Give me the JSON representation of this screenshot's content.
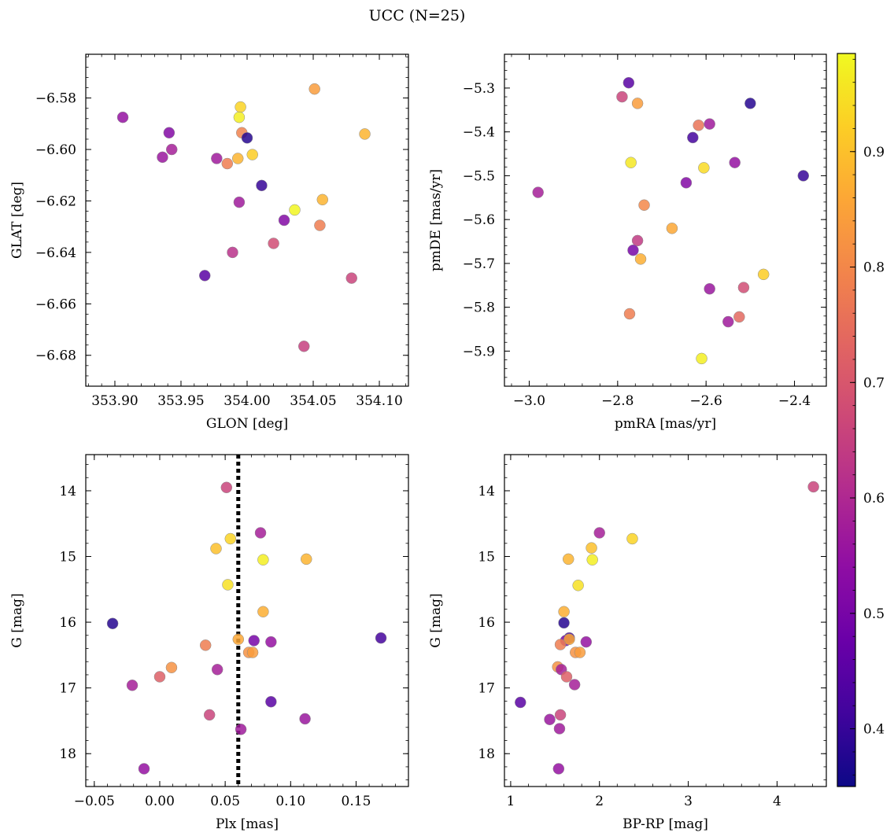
{
  "figure": {
    "title": "UCC (N=25)",
    "colorbar": {
      "ticks": [
        "0.4",
        "0.5",
        "0.6",
        "0.7",
        "0.8",
        "0.9"
      ],
      "min": 0.35,
      "max": 0.985,
      "colormap": "plasma"
    }
  },
  "chart_data": [
    {
      "type": "scatter",
      "title": "",
      "xlabel": "GLON [deg]",
      "ylabel": "GLAT [deg]",
      "xlim": [
        353.878,
        354.122
      ],
      "ylim": [
        -6.692,
        -6.563
      ],
      "xticks": [
        "353.90",
        "353.95",
        "354.00",
        "354.05",
        "354.10"
      ],
      "xtick_values": [
        353.9,
        353.95,
        354.0,
        354.05,
        354.1
      ],
      "yticks": [
        "-6.58",
        "-6.60",
        "-6.62",
        "-6.64",
        "-6.66",
        "-6.68"
      ],
      "ytick_values": [
        -6.58,
        -6.6,
        -6.62,
        -6.64,
        -6.66,
        -6.68
      ],
      "invert_y": false,
      "points": [
        {
          "x": 353.906,
          "y": -6.5875,
          "c": 0.55
        },
        {
          "x": 353.941,
          "y": -6.5935,
          "c": 0.52
        },
        {
          "x": 353.943,
          "y": -6.6,
          "c": 0.58
        },
        {
          "x": 353.936,
          "y": -6.603,
          "c": 0.56
        },
        {
          "x": 353.977,
          "y": -6.6035,
          "c": 0.57
        },
        {
          "x": 353.985,
          "y": -6.6055,
          "c": 0.78
        },
        {
          "x": 353.993,
          "y": -6.6035,
          "c": 0.88
        },
        {
          "x": 353.995,
          "y": -6.5835,
          "c": 0.93
        },
        {
          "x": 353.994,
          "y": -6.5875,
          "c": 0.97
        },
        {
          "x": 353.996,
          "y": -6.5935,
          "c": 0.79
        },
        {
          "x": 354.0,
          "y": -6.5955,
          "c": 0.38
        },
        {
          "x": 354.004,
          "y": -6.602,
          "c": 0.92
        },
        {
          "x": 354.051,
          "y": -6.5765,
          "c": 0.84
        },
        {
          "x": 354.089,
          "y": -6.594,
          "c": 0.88
        },
        {
          "x": 354.011,
          "y": -6.614,
          "c": 0.4
        },
        {
          "x": 353.994,
          "y": -6.6205,
          "c": 0.57
        },
        {
          "x": 354.057,
          "y": -6.6195,
          "c": 0.88
        },
        {
          "x": 354.036,
          "y": -6.6235,
          "c": 0.98
        },
        {
          "x": 354.028,
          "y": -6.6275,
          "c": 0.52
        },
        {
          "x": 354.055,
          "y": -6.6295,
          "c": 0.78
        },
        {
          "x": 354.02,
          "y": -6.6365,
          "c": 0.68
        },
        {
          "x": 353.989,
          "y": -6.64,
          "c": 0.62
        },
        {
          "x": 353.968,
          "y": -6.649,
          "c": 0.45
        },
        {
          "x": 354.079,
          "y": -6.65,
          "c": 0.66
        },
        {
          "x": 354.043,
          "y": -6.6765,
          "c": 0.65
        }
      ]
    },
    {
      "type": "scatter",
      "title": "",
      "xlabel": "pmRA [mas/yr]",
      "ylabel": "pmDE [mas/yr]",
      "xlim": [
        -3.056,
        -2.328
      ],
      "ylim": [
        -5.98,
        -5.223
      ],
      "xticks": [
        "-3.0",
        "-2.8",
        "-2.6",
        "-2.4"
      ],
      "xtick_values": [
        -3.0,
        -2.8,
        -2.6,
        -2.4
      ],
      "yticks": [
        "-5.3",
        "-5.4",
        "-5.5",
        "-5.6",
        "-5.7",
        "-5.8",
        "-5.9"
      ],
      "ytick_values": [
        -5.3,
        -5.4,
        -5.5,
        -5.6,
        -5.7,
        -5.8,
        -5.9
      ],
      "invert_y": false,
      "points": [
        {
          "x": -2.775,
          "y": -5.288,
          "c": 0.45
        },
        {
          "x": -2.79,
          "y": -5.32,
          "c": 0.66
        },
        {
          "x": -2.755,
          "y": -5.335,
          "c": 0.84
        },
        {
          "x": -2.5,
          "y": -5.335,
          "c": 0.38
        },
        {
          "x": -2.617,
          "y": -5.385,
          "c": 0.76
        },
        {
          "x": -2.592,
          "y": -5.382,
          "c": 0.57
        },
        {
          "x": -2.63,
          "y": -5.413,
          "c": 0.42
        },
        {
          "x": -2.77,
          "y": -5.47,
          "c": 0.96
        },
        {
          "x": -2.605,
          "y": -5.482,
          "c": 0.94
        },
        {
          "x": -2.535,
          "y": -5.47,
          "c": 0.55
        },
        {
          "x": -2.38,
          "y": -5.5,
          "c": 0.4
        },
        {
          "x": -2.645,
          "y": -5.516,
          "c": 0.52
        },
        {
          "x": -2.98,
          "y": -5.538,
          "c": 0.58
        },
        {
          "x": -2.74,
          "y": -5.567,
          "c": 0.8
        },
        {
          "x": -2.677,
          "y": -5.62,
          "c": 0.86
        },
        {
          "x": -2.755,
          "y": -5.648,
          "c": 0.64
        },
        {
          "x": -2.765,
          "y": -5.67,
          "c": 0.5
        },
        {
          "x": -2.748,
          "y": -5.69,
          "c": 0.87
        },
        {
          "x": -2.47,
          "y": -5.725,
          "c": 0.92
        },
        {
          "x": -2.592,
          "y": -5.758,
          "c": 0.56
        },
        {
          "x": -2.515,
          "y": -5.755,
          "c": 0.68
        },
        {
          "x": -2.773,
          "y": -5.815,
          "c": 0.78
        },
        {
          "x": -2.525,
          "y": -5.822,
          "c": 0.74
        },
        {
          "x": -2.55,
          "y": -5.833,
          "c": 0.57
        },
        {
          "x": -2.61,
          "y": -5.917,
          "c": 0.97
        }
      ]
    },
    {
      "type": "scatter",
      "title": "",
      "xlabel": "Plx [mas]",
      "ylabel": "G [mag]",
      "xlim": [
        -0.0565,
        0.19
      ],
      "ylim": [
        18.5,
        13.45
      ],
      "xticks": [
        "-0.05",
        "0.00",
        "0.05",
        "0.10",
        "0.15"
      ],
      "xtick_values": [
        -0.05,
        0.0,
        0.05,
        0.1,
        0.15
      ],
      "yticks": [
        "14",
        "15",
        "16",
        "17",
        "18"
      ],
      "ytick_values": [
        14,
        15,
        16,
        17,
        18
      ],
      "invert_y": true,
      "vline": {
        "x": 0.06,
        "style": "dotted",
        "color": "#000000"
      },
      "points": [
        {
          "x": 0.051,
          "y": 13.95,
          "c": 0.66
        },
        {
          "x": 0.077,
          "y": 14.64,
          "c": 0.58
        },
        {
          "x": 0.054,
          "y": 14.73,
          "c": 0.93
        },
        {
          "x": 0.043,
          "y": 14.88,
          "c": 0.9
        },
        {
          "x": 0.079,
          "y": 15.05,
          "c": 0.97
        },
        {
          "x": 0.112,
          "y": 15.04,
          "c": 0.88
        },
        {
          "x": 0.052,
          "y": 15.43,
          "c": 0.95
        },
        {
          "x": 0.079,
          "y": 15.84,
          "c": 0.87
        },
        {
          "x": -0.036,
          "y": 16.02,
          "c": 0.38
        },
        {
          "x": 0.169,
          "y": 16.24,
          "c": 0.42
        },
        {
          "x": 0.06,
          "y": 16.26,
          "c": 0.86
        },
        {
          "x": 0.072,
          "y": 16.28,
          "c": 0.5
        },
        {
          "x": 0.085,
          "y": 16.3,
          "c": 0.55
        },
        {
          "x": 0.035,
          "y": 16.35,
          "c": 0.78
        },
        {
          "x": 0.068,
          "y": 16.46,
          "c": 0.82
        },
        {
          "x": 0.071,
          "y": 16.46,
          "c": 0.84
        },
        {
          "x": 0.009,
          "y": 16.69,
          "c": 0.82
        },
        {
          "x": 0.044,
          "y": 16.72,
          "c": 0.58
        },
        {
          "x": 0.0,
          "y": 16.83,
          "c": 0.72
        },
        {
          "x": -0.021,
          "y": 16.96,
          "c": 0.58
        },
        {
          "x": 0.085,
          "y": 17.21,
          "c": 0.45
        },
        {
          "x": 0.038,
          "y": 17.41,
          "c": 0.66
        },
        {
          "x": 0.111,
          "y": 17.47,
          "c": 0.56
        },
        {
          "x": 0.062,
          "y": 17.63,
          "c": 0.57
        },
        {
          "x": -0.012,
          "y": 18.23,
          "c": 0.55
        }
      ]
    },
    {
      "type": "scatter",
      "title": "",
      "xlabel": "BP-RP [mag]",
      "ylabel": "G [mag]",
      "xlim": [
        0.93,
        4.555
      ],
      "ylim": [
        18.5,
        13.45
      ],
      "xticks": [
        "1",
        "2",
        "3",
        "4"
      ],
      "xtick_values": [
        1,
        2,
        3,
        4
      ],
      "yticks": [
        "14",
        "15",
        "16",
        "17",
        "18"
      ],
      "ytick_values": [
        14,
        15,
        16,
        17,
        18
      ],
      "invert_y": true,
      "points": [
        {
          "x": 4.41,
          "y": 13.94,
          "c": 0.66
        },
        {
          "x": 2.0,
          "y": 14.64,
          "c": 0.58
        },
        {
          "x": 2.37,
          "y": 14.73,
          "c": 0.93
        },
        {
          "x": 1.91,
          "y": 14.87,
          "c": 0.9
        },
        {
          "x": 1.92,
          "y": 15.05,
          "c": 0.97
        },
        {
          "x": 1.65,
          "y": 15.04,
          "c": 0.88
        },
        {
          "x": 1.76,
          "y": 15.44,
          "c": 0.95
        },
        {
          "x": 1.6,
          "y": 15.84,
          "c": 0.87
        },
        {
          "x": 1.6,
          "y": 16.01,
          "c": 0.38
        },
        {
          "x": 1.66,
          "y": 16.24,
          "c": 0.42
        },
        {
          "x": 1.62,
          "y": 16.28,
          "c": 0.5
        },
        {
          "x": 1.66,
          "y": 16.26,
          "c": 0.86
        },
        {
          "x": 1.85,
          "y": 16.3,
          "c": 0.55
        },
        {
          "x": 1.56,
          "y": 16.34,
          "c": 0.78
        },
        {
          "x": 1.73,
          "y": 16.46,
          "c": 0.82
        },
        {
          "x": 1.78,
          "y": 16.46,
          "c": 0.84
        },
        {
          "x": 1.53,
          "y": 16.68,
          "c": 0.82
        },
        {
          "x": 1.57,
          "y": 16.72,
          "c": 0.58
        },
        {
          "x": 1.63,
          "y": 16.83,
          "c": 0.72
        },
        {
          "x": 1.72,
          "y": 16.95,
          "c": 0.58
        },
        {
          "x": 1.11,
          "y": 17.22,
          "c": 0.45
        },
        {
          "x": 1.56,
          "y": 17.41,
          "c": 0.66
        },
        {
          "x": 1.44,
          "y": 17.48,
          "c": 0.56
        },
        {
          "x": 1.55,
          "y": 17.62,
          "c": 0.57
        },
        {
          "x": 1.54,
          "y": 18.23,
          "c": 0.55
        }
      ]
    }
  ]
}
